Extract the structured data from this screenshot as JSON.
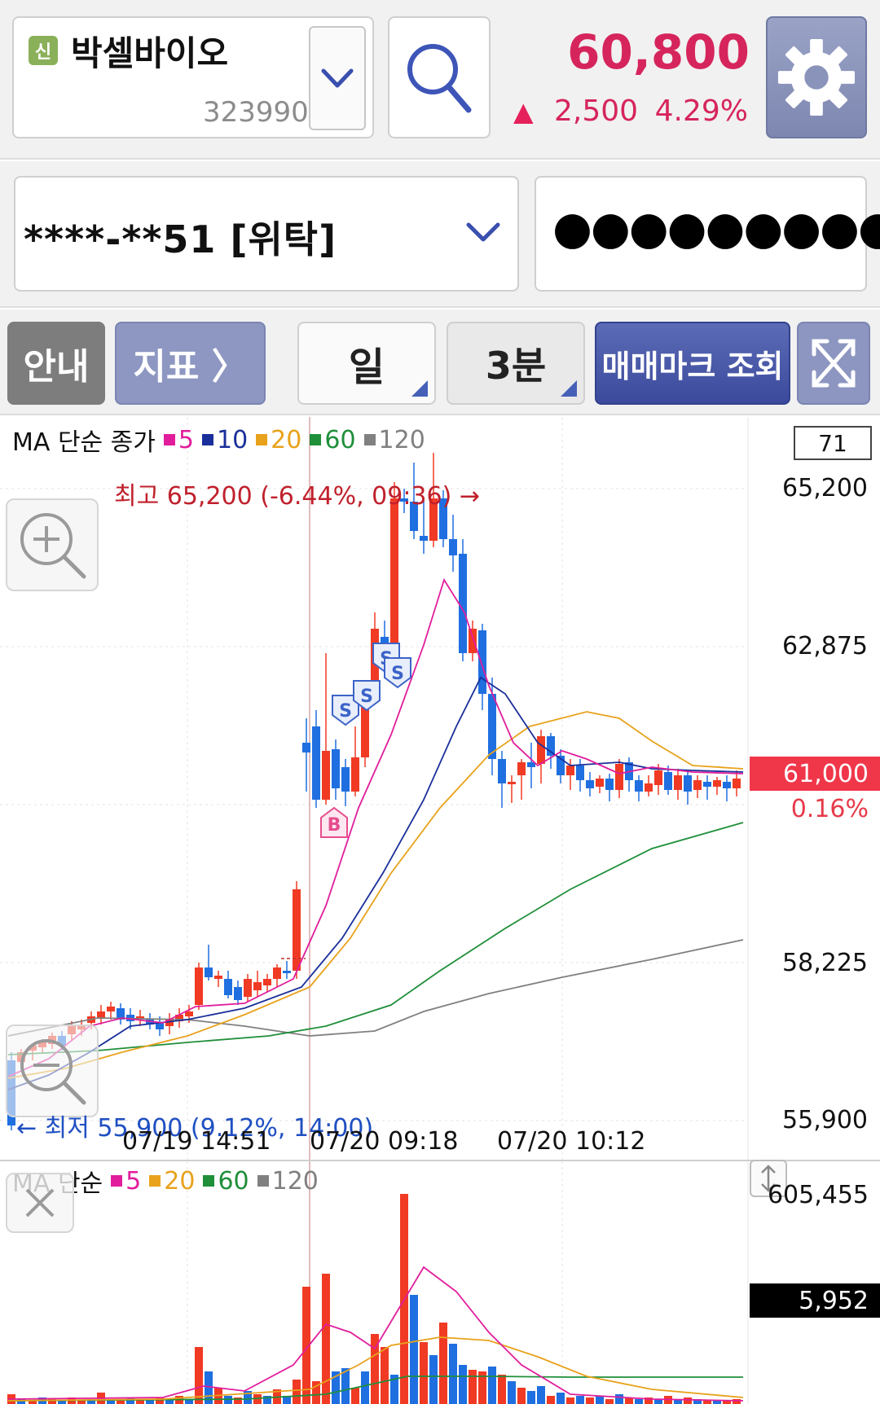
{
  "header": {
    "badge": "신",
    "stock_name": "박셀바이오",
    "stock_code": "323990",
    "price": "60,800",
    "change_arrow": "▲",
    "change_value": "2,500",
    "change_percent": "4.29%"
  },
  "account": {
    "number": "****-**51 [위탁]",
    "password_mask": "●●●●●●●●●"
  },
  "toolbar": {
    "guide": "안내",
    "indicator": "지표 〉",
    "period_day": "일",
    "period_min": "3분",
    "trade_mark": "매매마크 조회"
  },
  "price_chart": {
    "legend_title": "MA 단순 종가",
    "ma_items": [
      {
        "label": "5",
        "color": "#e11d9c"
      },
      {
        "label": "10",
        "color": "#1a2f9a"
      },
      {
        "label": "20",
        "color": "#e8a21b"
      },
      {
        "label": "60",
        "color": "#1f8f3a"
      },
      {
        "label": "120",
        "color": "#808080"
      }
    ],
    "top_box": "71",
    "y_labels": [
      "65,200",
      "62,875",
      "61,000",
      "58,225",
      "55,900"
    ],
    "current_price": "61,000",
    "current_change": "0.16%",
    "high_label": "최고 65,200 (-6.44%, 09:36) →",
    "low_label": "← 최저 55,900 (9.12%, 14:00)",
    "x_labels": [
      "07/19 14:51",
      "07/20 09:18",
      "07/20 10:12"
    ],
    "trade_marks": [
      "B",
      "S",
      "S",
      "S",
      "S"
    ]
  },
  "volume_chart": {
    "legend_title": "MA 단순",
    "ma_items": [
      {
        "label": "5",
        "color": "#e11d9c"
      },
      {
        "label": "20",
        "color": "#e8a21b"
      },
      {
        "label": "60",
        "color": "#1f8f3a"
      },
      {
        "label": "120",
        "color": "#808080"
      }
    ],
    "max_label": "605,455",
    "current_volume": "5,952"
  },
  "colors": {
    "up": "#f03a24",
    "down": "#1f6fe0",
    "accent_price": "#d6255c"
  }
}
